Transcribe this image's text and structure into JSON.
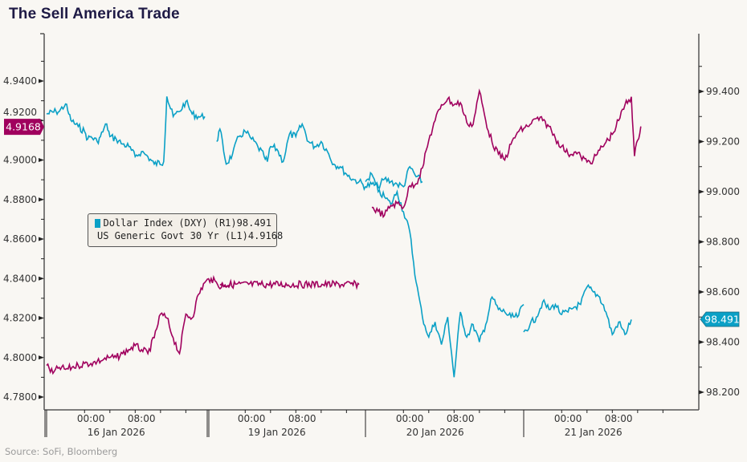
{
  "chart_data": {
    "type": "line",
    "title": "The Sell America Trade",
    "source": "Source: SoFi, Bloomberg",
    "colors": {
      "dxy": "#0aa0c6",
      "ust30": "#a0005e",
      "axis": "#555555",
      "text": "#333333",
      "title": "#1e1a45",
      "background": "#f9f7f3"
    },
    "left_axis": {
      "ticks": [
        "4.9400",
        "4.9200",
        "4.9000",
        "4.8800",
        "4.8600",
        "4.8400",
        "4.8200",
        "4.8000",
        "4.7800"
      ],
      "tick_values": [
        4.94,
        4.92,
        4.9,
        4.88,
        4.86,
        4.84,
        4.82,
        4.8,
        4.78
      ],
      "range": [
        4.775,
        4.955
      ],
      "last_value_label": "4.9168"
    },
    "right_axis": {
      "ticks": [
        "99.400",
        "99.200",
        "99.000",
        "98.800",
        "98.600",
        "98.400",
        "98.200"
      ],
      "tick_values": [
        99.4,
        99.2,
        99.0,
        98.8,
        98.6,
        98.4,
        98.2
      ],
      "range": [
        98.13,
        99.57
      ],
      "last_value_label": "98.491"
    },
    "x_axis": {
      "days": [
        {
          "date": "16 Jan 2026",
          "time_labels": [
            "00:00",
            "08:00"
          ]
        },
        {
          "date": "19 Jan 2026",
          "time_labels": [
            "00:00",
            "08:00"
          ]
        },
        {
          "date": "20 Jan 2026",
          "time_labels": [
            "00:00",
            "08:00"
          ]
        },
        {
          "date": "21 Jan 2026",
          "time_labels": [
            "00:00",
            "08:00"
          ]
        }
      ],
      "unit": "hours from session start (session starts 17:00 prior day, 25h per day panel)"
    },
    "legend": {
      "position": "upper-left",
      "entries": [
        {
          "label": "Dollar Index (DXY) (R1)",
          "value": "98.491",
          "color": "#0aa0c6"
        },
        {
          "label": "US Generic Govt 30 Yr (L1)",
          "value": "4.9168",
          "color": "#a0005e"
        }
      ]
    },
    "series": [
      {
        "name": "Dollar Index (DXY) (R1)",
        "axis": "right",
        "segments": [
          {
            "day": 0,
            "points": [
              [
                0,
                99.31
              ],
              [
                1.5,
                99.32
              ],
              [
                2,
                99.32
              ],
              [
                3,
                99.35
              ],
              [
                3.5,
                99.31
              ],
              [
                4,
                99.28
              ],
              [
                5,
                99.26
              ],
              [
                6,
                99.24
              ],
              [
                6.5,
                99.21
              ],
              [
                7,
                99.22
              ],
              [
                8,
                99.2
              ],
              [
                8.5,
                99.22
              ],
              [
                9.5,
                99.27
              ],
              [
                10,
                99.22
              ],
              [
                11,
                99.21
              ],
              [
                12,
                99.19
              ],
              [
                13,
                99.18
              ],
              [
                14,
                99.14
              ],
              [
                15,
                99.16
              ],
              [
                16,
                99.14
              ],
              [
                17,
                99.11
              ],
              [
                18.5,
                99.12
              ],
              [
                19,
                99.38
              ],
              [
                20,
                99.3
              ],
              [
                21,
                99.32
              ],
              [
                22,
                99.36
              ],
              [
                23,
                99.31
              ],
              [
                24,
                99.3
              ],
              [
                25,
                99.3
              ]
            ]
          },
          {
            "day": 1,
            "points": [
              [
                1.5,
                99.2
              ],
              [
                2,
                99.25
              ],
              [
                3,
                99.11
              ],
              [
                4,
                99.15
              ],
              [
                5,
                99.22
              ],
              [
                6,
                99.24
              ],
              [
                7,
                99.21
              ],
              [
                8,
                99.18
              ],
              [
                9,
                99.14
              ],
              [
                9.5,
                99.12
              ],
              [
                10,
                99.18
              ],
              [
                11,
                99.17
              ],
              [
                12,
                99.12
              ],
              [
                13,
                99.23
              ],
              [
                14,
                99.22
              ],
              [
                15,
                99.27
              ],
              [
                16,
                99.2
              ],
              [
                17,
                99.18
              ],
              [
                18,
                99.2
              ],
              [
                19,
                99.16
              ],
              [
                20,
                99.11
              ],
              [
                21,
                99.1
              ],
              [
                22,
                99.07
              ],
              [
                23,
                99.05
              ],
              [
                24,
                99.04
              ],
              [
                25,
                99.02
              ],
              [
                26,
                99.03
              ],
              [
                27,
                99.02
              ],
              [
                28,
                99.05
              ],
              [
                29,
                99.04
              ],
              [
                30,
                99.03
              ],
              [
                31,
                99.02
              ],
              [
                32,
                99.1
              ],
              [
                33,
                99.06
              ],
              [
                34,
                99.04
              ]
            ]
          },
          {
            "day": 2,
            "points": [
              [
                0,
                99.04
              ],
              [
                1,
                99.07
              ],
              [
                2,
                99.0
              ],
              [
                3,
                98.98
              ],
              [
                4,
                98.95
              ],
              [
                5,
                99.0
              ],
              [
                6,
                98.92
              ],
              [
                7,
                98.84
              ],
              [
                8,
                98.64
              ],
              [
                9,
                98.5
              ],
              [
                10,
                98.42
              ],
              [
                11,
                98.48
              ],
              [
                12,
                98.39
              ],
              [
                13,
                98.5
              ],
              [
                14,
                98.26
              ],
              [
                15,
                98.52
              ],
              [
                16,
                98.42
              ],
              [
                17,
                98.47
              ],
              [
                18,
                98.4
              ],
              [
                19,
                98.47
              ],
              [
                20,
                98.58
              ],
              [
                21,
                98.53
              ],
              [
                22,
                98.52
              ],
              [
                23,
                98.5
              ],
              [
                24,
                98.5
              ],
              [
                25,
                98.55
              ]
            ]
          },
          {
            "day": 3,
            "points": [
              [
                0,
                98.44
              ],
              [
                1,
                98.47
              ],
              [
                2,
                98.5
              ],
              [
                3,
                98.56
              ],
              [
                4,
                98.53
              ],
              [
                5,
                98.55
              ],
              [
                6,
                98.51
              ],
              [
                7,
                98.52
              ],
              [
                8,
                98.54
              ],
              [
                9,
                98.55
              ],
              [
                10,
                98.62
              ],
              [
                11,
                98.6
              ],
              [
                12,
                98.58
              ],
              [
                13,
                98.52
              ],
              [
                14,
                98.43
              ],
              [
                15,
                98.48
              ],
              [
                16,
                98.43
              ],
              [
                17,
                98.49
              ]
            ]
          }
        ]
      },
      {
        "name": "US Generic Govt 30 Yr (L1)",
        "axis": "left",
        "segments": [
          {
            "day": 0,
            "points": [
              [
                0,
                4.796
              ],
              [
                1,
                4.792
              ],
              [
                2,
                4.795
              ],
              [
                3,
                4.794
              ],
              [
                4,
                4.795
              ],
              [
                5,
                4.796
              ],
              [
                6,
                4.797
              ],
              [
                7,
                4.797
              ],
              [
                8,
                4.798
              ],
              [
                9,
                4.799
              ],
              [
                10,
                4.8
              ],
              [
                11,
                4.8
              ],
              [
                12,
                4.802
              ],
              [
                13,
                4.804
              ],
              [
                14,
                4.806
              ],
              [
                15,
                4.804
              ],
              [
                16,
                4.802
              ],
              [
                17,
                4.81
              ],
              [
                18,
                4.822
              ],
              [
                19,
                4.82
              ],
              [
                20,
                4.81
              ],
              [
                21,
                4.802
              ],
              [
                22,
                4.822
              ],
              [
                23,
                4.82
              ],
              [
                24,
                4.832
              ],
              [
                25,
                4.838
              ],
              [
                26,
                4.84
              ],
              [
                27,
                4.837
              ],
              [
                28,
                4.836
              ],
              [
                29,
                4.837
              ]
            ]
          },
          {
            "day": 1,
            "points": [
              [
                2,
                4.837
              ],
              [
                24,
                4.837
              ]
            ]
          },
          {
            "day": 2,
            "points": [
              [
                1,
                4.876
              ],
              [
                2,
                4.874
              ],
              [
                3,
                4.872
              ],
              [
                4,
                4.877
              ],
              [
                5,
                4.878
              ],
              [
                6,
                4.876
              ],
              [
                7,
                4.887
              ],
              [
                8,
                4.888
              ],
              [
                9,
                4.896
              ],
              [
                10,
                4.91
              ],
              [
                11,
                4.92
              ],
              [
                12,
                4.928
              ],
              [
                13,
                4.931
              ],
              [
                14,
                4.928
              ],
              [
                15,
                4.929
              ],
              [
                16,
                4.919
              ],
              [
                17,
                4.918
              ],
              [
                18,
                4.935
              ],
              [
                19,
                4.92
              ],
              [
                20,
                4.909
              ],
              [
                21,
                4.903
              ],
              [
                22,
                4.9
              ],
              [
                23,
                4.908
              ],
              [
                24,
                4.914
              ],
              [
                25,
                4.916
              ],
              [
                26,
                4.918
              ],
              [
                27,
                4.921
              ]
            ]
          },
          {
            "day": 3,
            "points": [
              [
                2,
                4.921
              ],
              [
                3,
                4.92
              ],
              [
                4,
                4.917
              ],
              [
                5,
                4.911
              ],
              [
                6,
                4.907
              ],
              [
                7,
                4.903
              ],
              [
                8,
                4.904
              ],
              [
                9,
                4.902
              ],
              [
                10,
                4.899
              ],
              [
                11,
                4.9
              ],
              [
                12,
                4.905
              ],
              [
                13,
                4.909
              ],
              [
                14,
                4.913
              ],
              [
                15,
                4.92
              ],
              [
                16,
                4.928
              ],
              [
                17,
                4.932
              ],
              [
                17.5,
                4.902
              ],
              [
                18,
                4.91
              ],
              [
                18.5,
                4.917
              ]
            ]
          }
        ]
      }
    ]
  }
}
